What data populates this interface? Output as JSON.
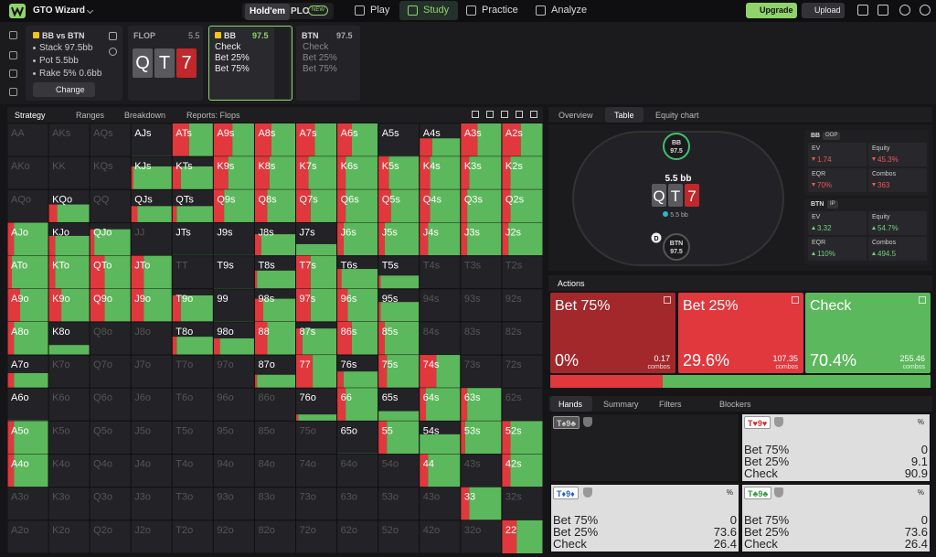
{
  "nav": {
    "logo": "GTO Wizard",
    "holdem": "Hold'em",
    "plo": "PLO",
    "new": "NEW",
    "tabs": [
      "Play",
      "Study",
      "Practice",
      "Analyze"
    ],
    "upgrade": "Upgrade",
    "upload": "Upload"
  },
  "spot": {
    "title": "BB vs BTN",
    "lines": [
      "Stack 97.5bb",
      "Pot 5.5bb",
      "Rake 5% 0.6bb"
    ],
    "change": "Change"
  },
  "flop": {
    "label": "FLOP",
    "pot": "5.5",
    "cards": [
      "Q",
      "T",
      "7"
    ]
  },
  "bb": {
    "label": "BB",
    "stack": "97.5",
    "actions": [
      "Check",
      "Bet 25%",
      "Bet 75%"
    ]
  },
  "btn": {
    "label": "BTN",
    "stack": "97.5",
    "actions": [
      "Check",
      "Bet 25%",
      "Bet 75%"
    ]
  },
  "matrix": {
    "tabs": [
      "Strategy",
      "Ranges",
      "Breakdown",
      "Reports: Flops"
    ],
    "hands": [
      [
        "AA",
        "AKs",
        "AQs",
        "AJs",
        "ATs",
        "A9s",
        "A8s",
        "A7s",
        "A6s",
        "A5s",
        "A4s",
        "A3s",
        "A2s"
      ],
      [
        "AKo",
        "KK",
        "KQs",
        "KJs",
        "KTs",
        "K9s",
        "K8s",
        "K7s",
        "K6s",
        "K5s",
        "K4s",
        "K3s",
        "K2s"
      ],
      [
        "AQo",
        "KQo",
        "QQ",
        "QJs",
        "QTs",
        "Q9s",
        "Q8s",
        "Q7s",
        "Q6s",
        "Q5s",
        "Q4s",
        "Q3s",
        "Q2s"
      ],
      [
        "AJo",
        "KJo",
        "QJo",
        "JJ",
        "JTs",
        "J9s",
        "J8s",
        "J7s",
        "J6s",
        "J5s",
        "J4s",
        "J3s",
        "J2s"
      ],
      [
        "ATo",
        "KTo",
        "QTo",
        "JTo",
        "TT",
        "T9s",
        "T8s",
        "T7s",
        "T6s",
        "T5s",
        "T4s",
        "T3s",
        "T2s"
      ],
      [
        "A9o",
        "K9o",
        "Q9o",
        "J9o",
        "T9o",
        "99",
        "98s",
        "97s",
        "96s",
        "95s",
        "94s",
        "93s",
        "92s"
      ],
      [
        "A8o",
        "K8o",
        "Q8o",
        "J8o",
        "T8o",
        "98o",
        "88",
        "87s",
        "86s",
        "85s",
        "84s",
        "83s",
        "82s"
      ],
      [
        "A7o",
        "K7o",
        "Q7o",
        "J7o",
        "T7o",
        "97o",
        "87o",
        "77",
        "76s",
        "75s",
        "74s",
        "73s",
        "72s"
      ],
      [
        "A6o",
        "K6o",
        "Q6o",
        "J6o",
        "T6o",
        "96o",
        "86o",
        "76o",
        "66",
        "65s",
        "64s",
        "63s",
        "62s"
      ],
      [
        "A5o",
        "K5o",
        "Q5o",
        "J5o",
        "T5o",
        "95o",
        "85o",
        "75o",
        "65o",
        "55",
        "54s",
        "53s",
        "52s"
      ],
      [
        "A4o",
        "K4o",
        "Q4o",
        "J4o",
        "T4o",
        "94o",
        "84o",
        "74o",
        "64o",
        "54o",
        "44",
        "43s",
        "42s"
      ],
      [
        "A3o",
        "K3o",
        "Q3o",
        "J3o",
        "T3o",
        "93o",
        "83o",
        "73o",
        "63o",
        "53o",
        "43o",
        "33",
        "32s"
      ],
      [
        "A2o",
        "K2o",
        "Q2o",
        "J2o",
        "T2o",
        "92o",
        "82o",
        "72o",
        "62o",
        "52o",
        "42o",
        "32o",
        "22"
      ]
    ],
    "weight": [
      [
        0,
        0,
        0,
        2,
        100,
        100,
        100,
        100,
        100,
        2,
        55,
        100,
        100
      ],
      [
        0,
        0,
        0,
        70,
        70,
        100,
        100,
        100,
        100,
        100,
        100,
        100,
        100
      ],
      [
        0,
        55,
        0,
        50,
        50,
        100,
        100,
        100,
        100,
        100,
        100,
        100,
        100
      ],
      [
        100,
        60,
        80,
        0,
        2,
        2,
        65,
        35,
        100,
        100,
        100,
        100,
        100
      ],
      [
        100,
        100,
        100,
        100,
        0,
        2,
        55,
        100,
        60,
        40,
        0,
        0,
        0
      ],
      [
        100,
        100,
        100,
        100,
        80,
        2,
        70,
        100,
        100,
        60,
        0,
        0,
        0
      ],
      [
        100,
        30,
        0,
        0,
        55,
        50,
        100,
        80,
        100,
        100,
        0,
        0,
        0
      ],
      [
        45,
        0,
        0,
        0,
        0,
        0,
        40,
        100,
        50,
        100,
        100,
        0,
        0
      ],
      [
        2,
        0,
        0,
        0,
        0,
        0,
        0,
        20,
        100,
        30,
        100,
        100,
        0
      ],
      [
        100,
        0,
        0,
        0,
        0,
        0,
        0,
        0,
        2,
        100,
        60,
        100,
        100
      ],
      [
        100,
        0,
        0,
        0,
        0,
        0,
        0,
        0,
        0,
        0,
        100,
        0,
        100
      ],
      [
        0,
        0,
        0,
        0,
        0,
        0,
        0,
        0,
        0,
        0,
        0,
        100,
        0
      ],
      [
        0,
        0,
        0,
        0,
        0,
        0,
        0,
        0,
        0,
        0,
        0,
        0,
        100
      ]
    ],
    "bet": [
      [
        0,
        0,
        0,
        0,
        40,
        45,
        40,
        45,
        35,
        0,
        30,
        40,
        45
      ],
      [
        0,
        0,
        0,
        5,
        20,
        35,
        35,
        30,
        20,
        25,
        25,
        20,
        20
      ],
      [
        0,
        20,
        0,
        15,
        10,
        25,
        30,
        35,
        20,
        30,
        25,
        15,
        20
      ],
      [
        15,
        15,
        10,
        0,
        0,
        0,
        15,
        0,
        15,
        15,
        20,
        15,
        15
      ],
      [
        10,
        15,
        35,
        30,
        0,
        0,
        5,
        35,
        10,
        5,
        0,
        0,
        0
      ],
      [
        30,
        30,
        35,
        30,
        20,
        0,
        20,
        35,
        25,
        5,
        0,
        0,
        0
      ],
      [
        15,
        0,
        0,
        0,
        10,
        15,
        30,
        15,
        35,
        15,
        0,
        0,
        0
      ],
      [
        15,
        0,
        0,
        0,
        0,
        0,
        5,
        40,
        15,
        20,
        40,
        0,
        0
      ],
      [
        0,
        0,
        0,
        0,
        0,
        0,
        0,
        5,
        20,
        0,
        15,
        15,
        0
      ],
      [
        15,
        0,
        0,
        0,
        0,
        0,
        0,
        0,
        0,
        20,
        0,
        10,
        20
      ],
      [
        15,
        0,
        0,
        0,
        0,
        0,
        0,
        0,
        0,
        0,
        20,
        0,
        20
      ],
      [
        0,
        0,
        0,
        0,
        0,
        0,
        0,
        0,
        0,
        0,
        0,
        20,
        0
      ],
      [
        0,
        0,
        0,
        0,
        0,
        0,
        0,
        0,
        0,
        0,
        0,
        0,
        35
      ]
    ],
    "check": [
      [
        0,
        0,
        0,
        100,
        60,
        55,
        60,
        55,
        65,
        100,
        70,
        60,
        55
      ],
      [
        0,
        0,
        0,
        95,
        80,
        65,
        65,
        70,
        80,
        75,
        75,
        80,
        80
      ],
      [
        0,
        80,
        0,
        85,
        90,
        75,
        70,
        65,
        80,
        70,
        75,
        85,
        80
      ],
      [
        85,
        85,
        90,
        0,
        100,
        100,
        85,
        100,
        85,
        85,
        80,
        85,
        85
      ],
      [
        90,
        85,
        65,
        70,
        0,
        100,
        95,
        65,
        90,
        95,
        0,
        0,
        0
      ],
      [
        70,
        70,
        65,
        70,
        80,
        100,
        80,
        65,
        75,
        95,
        0,
        0,
        0
      ],
      [
        85,
        100,
        0,
        0,
        90,
        85,
        70,
        85,
        65,
        85,
        0,
        0,
        0
      ],
      [
        85,
        0,
        0,
        0,
        0,
        0,
        95,
        60,
        85,
        80,
        60,
        0,
        0
      ],
      [
        100,
        0,
        0,
        0,
        0,
        0,
        0,
        95,
        80,
        100,
        85,
        85,
        0
      ],
      [
        85,
        0,
        0,
        0,
        0,
        0,
        0,
        0,
        100,
        80,
        100,
        90,
        80
      ],
      [
        85,
        0,
        0,
        0,
        0,
        0,
        0,
        0,
        0,
        0,
        80,
        0,
        80
      ],
      [
        0,
        0,
        0,
        0,
        0,
        0,
        0,
        0,
        0,
        0,
        0,
        80,
        0
      ],
      [
        0,
        0,
        0,
        0,
        0,
        0,
        0,
        0,
        0,
        0,
        0,
        0,
        65
      ]
    ]
  },
  "right_tabs": [
    "Overview",
    "Table",
    "Equity chart"
  ],
  "table": {
    "bb": "BB",
    "bb_stack": "97.5",
    "pot": "5.5 bb",
    "cards": [
      "Q",
      "T",
      "7"
    ],
    "chip": "5.5 bb",
    "dealer": "D",
    "btn": "BTN",
    "btn_stack": "97.5"
  },
  "stats": [
    {
      "player": "BB",
      "pos": "OOP",
      "color": "#f0555a",
      "items": [
        {
          "label": "EV",
          "value": "1.74"
        },
        {
          "label": "Equity",
          "value": "45.3%"
        },
        {
          "label": "EQR",
          "value": "70%"
        },
        {
          "label": "Combos",
          "value": "363"
        }
      ]
    },
    {
      "player": "BTN",
      "pos": "IP",
      "color": "#6fd07a",
      "items": [
        {
          "label": "EV",
          "value": "3.32"
        },
        {
          "label": "Equity",
          "value": "54.7%"
        },
        {
          "label": "EQR",
          "value": "110%"
        },
        {
          "label": "Combos",
          "value": "494.5"
        }
      ]
    }
  ],
  "actions": {
    "label": "Actions",
    "buttons": [
      {
        "name": "Bet 75%",
        "freq": {
          "value": 0,
          "label": "0%"
        },
        "combos": "0.17",
        "unit": "combos",
        "color": "#a3282c"
      },
      {
        "name": "Bet 25%",
        "freq": {
          "value": 29.6,
          "label": "29.6%"
        },
        "combos": "107.35",
        "unit": "combos",
        "color": "#e0383d"
      },
      {
        "name": "Check",
        "freq": {
          "value": 70.4,
          "label": "70.4%"
        },
        "combos": "255.46",
        "unit": "combos",
        "color": "#5cb85c"
      }
    ]
  },
  "hands_tabs": [
    "Hands",
    "Summary",
    "Filters",
    "Blockers"
  ],
  "combos": [
    {
      "label": "T♠9♣",
      "color": "#cfcfcf"
    },
    {
      "label": "T♥9♥",
      "color": "#d0282c",
      "pct": "%",
      "rows": [
        {
          "name": "Bet 75%",
          "value": "0"
        },
        {
          "name": "Bet 25%",
          "value": "9.1"
        },
        {
          "name": "Check",
          "value": "90.9"
        }
      ]
    },
    {
      "label": "T♦9♦",
      "color": "#1a5fd0",
      "pct": "%",
      "rows": [
        {
          "name": "Bet 75%",
          "value": "0"
        },
        {
          "name": "Bet 25%",
          "value": "73.6"
        },
        {
          "name": "Check",
          "value": "26.4"
        }
      ]
    },
    {
      "label": "T♣9♣",
      "color": "#2a9a3a",
      "pct": "%",
      "rows": [
        {
          "name": "Bet 75%",
          "value": "0"
        },
        {
          "name": "Bet 25%",
          "value": "73.6"
        },
        {
          "name": "Check",
          "value": "26.4"
        }
      ]
    }
  ]
}
